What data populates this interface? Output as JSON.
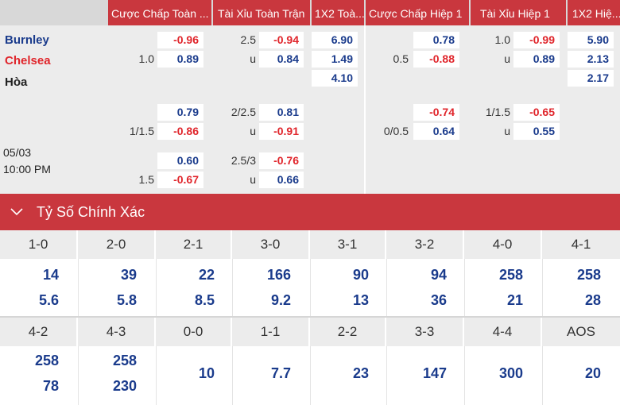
{
  "header": {
    "cols": [
      {
        "label": "Cược Chấp Toàn ...",
        "left": 0
      },
      {
        "label": "Tài Xỉu Toàn Trận",
        "left": 1
      },
      {
        "label": "1X2 Toà...",
        "left": 2
      },
      {
        "label": "Cược Chấp Hiệp 1",
        "left": 3
      },
      {
        "label": "Tài Xỉu Hiệp 1",
        "left": 4
      },
      {
        "label": "1X2 Hiệ...",
        "left": 5
      }
    ]
  },
  "match": {
    "home": "Burnley",
    "away": "Chelsea",
    "draw": "Hòa",
    "date": "05/03",
    "time": "10:00 PM",
    "home_color": "#1a3b8c",
    "away_color": "#e0252b"
  },
  "odds": {
    "row1": {
      "ah_home": "-0.96",
      "ah_line": "1.0",
      "ah_away": "0.89",
      "ou_line": "2.5",
      "ou_over": "-0.94",
      "ou_u": "u",
      "ou_under": "0.84",
      "x12_home": "6.90",
      "x12_away": "1.49",
      "x12_draw": "4.10",
      "h1_ah_home": "0.78",
      "h1_ah_line": "0.5",
      "h1_ah_away": "-0.88",
      "h1_ou_line": "1.0",
      "h1_ou_over": "-0.99",
      "h1_ou_u": "u",
      "h1_ou_under": "0.89",
      "h1_x12_home": "5.90",
      "h1_x12_away": "2.13",
      "h1_x12_draw": "2.17"
    },
    "row2": {
      "ah_home": "0.79",
      "ah_line": "1/1.5",
      "ah_away": "-0.86",
      "ou_line": "2/2.5",
      "ou_over": "0.81",
      "ou_u": "u",
      "ou_under": "-0.91",
      "h1_ah_home": "-0.74",
      "h1_ah_line": "0/0.5",
      "h1_ah_away": "0.64",
      "h1_ou_line": "1/1.5",
      "h1_ou_over": "-0.65",
      "h1_ou_u": "u",
      "h1_ou_under": "0.55"
    },
    "row3": {
      "ah_home": "0.60",
      "ah_line": "1.5",
      "ah_away": "-0.67",
      "ou_line": "2.5/3",
      "ou_over": "-0.76",
      "ou_u": "u",
      "ou_under": "0.66"
    }
  },
  "correct_score": {
    "title": "Tỷ Số Chính Xác",
    "row1": [
      {
        "score": "1-0",
        "home": "14",
        "away": "5.6"
      },
      {
        "score": "2-0",
        "home": "39",
        "away": "5.8"
      },
      {
        "score": "2-1",
        "home": "22",
        "away": "8.5"
      },
      {
        "score": "3-0",
        "home": "166",
        "away": "9.2"
      },
      {
        "score": "3-1",
        "home": "90",
        "away": "13"
      },
      {
        "score": "3-2",
        "home": "94",
        "away": "36"
      },
      {
        "score": "4-0",
        "home": "258",
        "away": "21"
      },
      {
        "score": "4-1",
        "home": "258",
        "away": "28"
      }
    ],
    "row2": [
      {
        "score": "4-2",
        "home": "258",
        "away": "78"
      },
      {
        "score": "4-3",
        "home": "258",
        "away": "230"
      },
      {
        "score": "0-0",
        "single": "10"
      },
      {
        "score": "1-1",
        "single": "7.7"
      },
      {
        "score": "2-2",
        "single": "23"
      },
      {
        "score": "3-3",
        "single": "147"
      },
      {
        "score": "4-4",
        "single": "300"
      },
      {
        "score": "AOS",
        "single": "20"
      }
    ]
  }
}
